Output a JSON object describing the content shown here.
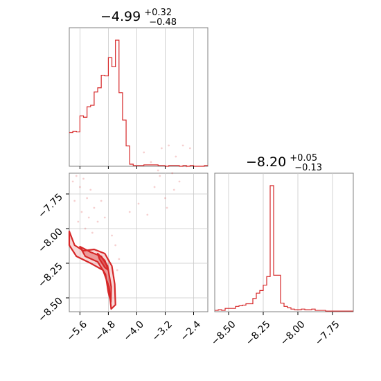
{
  "chart_data": {
    "type": "corner",
    "color": "#d62728",
    "parameters": [
      {
        "title": {
          "value": "−4.99",
          "plus": "+0.32",
          "minus": "−0.48"
        },
        "range": [
          -5.9,
          -2.0
        ],
        "ticks": [
          -5.6,
          -4.8,
          -4.0,
          -3.2,
          -2.4
        ],
        "tick_labels": [
          "−5.6",
          "−4.8",
          "−4.0",
          "−3.2",
          "−2.4"
        ]
      },
      {
        "title": {
          "value": "−8.20",
          "plus": "+0.05",
          "minus": "−0.13"
        },
        "range": [
          -8.6,
          -7.6
        ],
        "ticks": [
          -8.5,
          -8.25,
          -8.0,
          -7.75
        ],
        "tick_labels": [
          "−8.50",
          "−8.25",
          "−8.00",
          "−7.75"
        ]
      }
    ],
    "hist_1": {
      "bin_edges": [
        -5.9,
        -5.8,
        -5.7,
        -5.6,
        -5.5,
        -5.4,
        -5.3,
        -5.2,
        -5.1,
        -5.0,
        -4.9,
        -4.8,
        -4.7,
        -4.6,
        -4.5,
        -4.4,
        -4.3,
        -4.2,
        -4.1,
        -4.0,
        -3.9,
        -3.8,
        -3.7,
        -3.6,
        -3.5,
        -3.4,
        -3.3,
        -3.2,
        -3.1,
        -3.0,
        -2.9,
        -2.8,
        -2.7,
        -2.6,
        -2.5,
        -2.4,
        -2.3,
        -2.2,
        -2.1,
        -2.0
      ],
      "counts": [
        48,
        50,
        49,
        72,
        70,
        85,
        87,
        106,
        112,
        130,
        129,
        155,
        142,
        180,
        105,
        66,
        29,
        3,
        1,
        1,
        1,
        2,
        2,
        2,
        2,
        1,
        1,
        0,
        1,
        1,
        1,
        0,
        1,
        0,
        1,
        0,
        0,
        0,
        1
      ]
    },
    "hist_2": {
      "bin_edges": [
        -8.6,
        -8.575,
        -8.55,
        -8.525,
        -8.5,
        -8.475,
        -8.45,
        -8.425,
        -8.4,
        -8.375,
        -8.35,
        -8.325,
        -8.3,
        -8.275,
        -8.25,
        -8.225,
        -8.2,
        -8.175,
        -8.15,
        -8.125,
        -8.1,
        -8.075,
        -8.05,
        -8.025,
        -8.0,
        -7.975,
        -7.95,
        -7.925,
        -7.9,
        -7.875,
        -7.85,
        -7.825,
        -7.8,
        -7.775,
        -7.75,
        -7.725,
        -7.7,
        -7.675,
        -7.65,
        -7.625,
        -7.6
      ],
      "counts": [
        2,
        3,
        2,
        5,
        5,
        5,
        8,
        9,
        10,
        12,
        12,
        20,
        28,
        32,
        40,
        53,
        190,
        55,
        55,
        13,
        8,
        6,
        4,
        3,
        3,
        4,
        3,
        3,
        4,
        2,
        2,
        2,
        1,
        1,
        1,
        1,
        1,
        1,
        1,
        1
      ]
    },
    "contours": [
      {
        "level": "outer",
        "points": [
          [
            -5.9,
            -8.02
          ],
          [
            -5.75,
            -8.12
          ],
          [
            -5.5,
            -8.16
          ],
          [
            -5.2,
            -8.15
          ],
          [
            -4.9,
            -8.18
          ],
          [
            -4.7,
            -8.27
          ],
          [
            -4.62,
            -8.4
          ],
          [
            -4.6,
            -8.55
          ],
          [
            -4.72,
            -8.58
          ],
          [
            -4.78,
            -8.42
          ],
          [
            -4.95,
            -8.3
          ],
          [
            -5.3,
            -8.25
          ],
          [
            -5.7,
            -8.2
          ],
          [
            -5.9,
            -8.12
          ]
        ]
      },
      {
        "level": "middle",
        "points": [
          [
            -5.6,
            -8.13
          ],
          [
            -5.3,
            -8.17
          ],
          [
            -5.0,
            -8.2
          ],
          [
            -4.82,
            -8.27
          ],
          [
            -4.72,
            -8.42
          ],
          [
            -4.73,
            -8.53
          ],
          [
            -4.8,
            -8.46
          ],
          [
            -4.88,
            -8.33
          ],
          [
            -5.1,
            -8.24
          ],
          [
            -5.45,
            -8.2
          ]
        ]
      },
      {
        "level": "inner",
        "points": [
          [
            -5.1,
            -8.18
          ],
          [
            -4.9,
            -8.23
          ],
          [
            -4.8,
            -8.3
          ],
          [
            -4.9,
            -8.28
          ],
          [
            -5.05,
            -8.22
          ]
        ]
      }
    ],
    "scatter": [
      [
        -5.8,
        -7.66
      ],
      [
        -5.7,
        -7.62
      ],
      [
        -5.6,
        -7.7
      ],
      [
        -5.5,
        -7.64
      ],
      [
        -5.4,
        -7.78
      ],
      [
        -5.3,
        -7.72
      ],
      [
        -5.2,
        -7.85
      ],
      [
        -5.1,
        -7.95
      ],
      [
        -5.55,
        -7.88
      ],
      [
        -5.75,
        -7.8
      ],
      [
        -5.65,
        -7.95
      ],
      [
        -5.45,
        -8.0
      ],
      [
        -5.35,
        -7.92
      ],
      [
        -5.25,
        -8.03
      ],
      [
        -5.0,
        -7.8
      ],
      [
        -4.9,
        -7.92
      ],
      [
        -4.7,
        -8.05
      ],
      [
        -4.6,
        -8.12
      ],
      [
        -4.5,
        -8.22
      ],
      [
        -4.55,
        -8.3
      ],
      [
        -4.65,
        -8.35
      ],
      [
        -3.8,
        -7.45
      ],
      [
        -3.6,
        -7.52
      ],
      [
        -3.4,
        -7.58
      ],
      [
        -3.3,
        -7.42
      ],
      [
        -3.1,
        -7.4
      ],
      [
        -2.9,
        -7.48
      ],
      [
        -2.7,
        -7.4
      ],
      [
        -2.5,
        -7.42
      ],
      [
        -3.0,
        -7.6
      ],
      [
        -3.5,
        -7.7
      ],
      [
        -3.2,
        -7.78
      ],
      [
        -2.6,
        -7.55
      ],
      [
        -2.8,
        -7.66
      ],
      [
        -3.95,
        -7.82
      ],
      [
        -4.2,
        -7.88
      ],
      [
        -3.7,
        -7.9
      ],
      [
        -3.35,
        -7.62
      ],
      [
        -3.15,
        -7.85
      ],
      [
        -2.95,
        -7.72
      ]
    ]
  }
}
